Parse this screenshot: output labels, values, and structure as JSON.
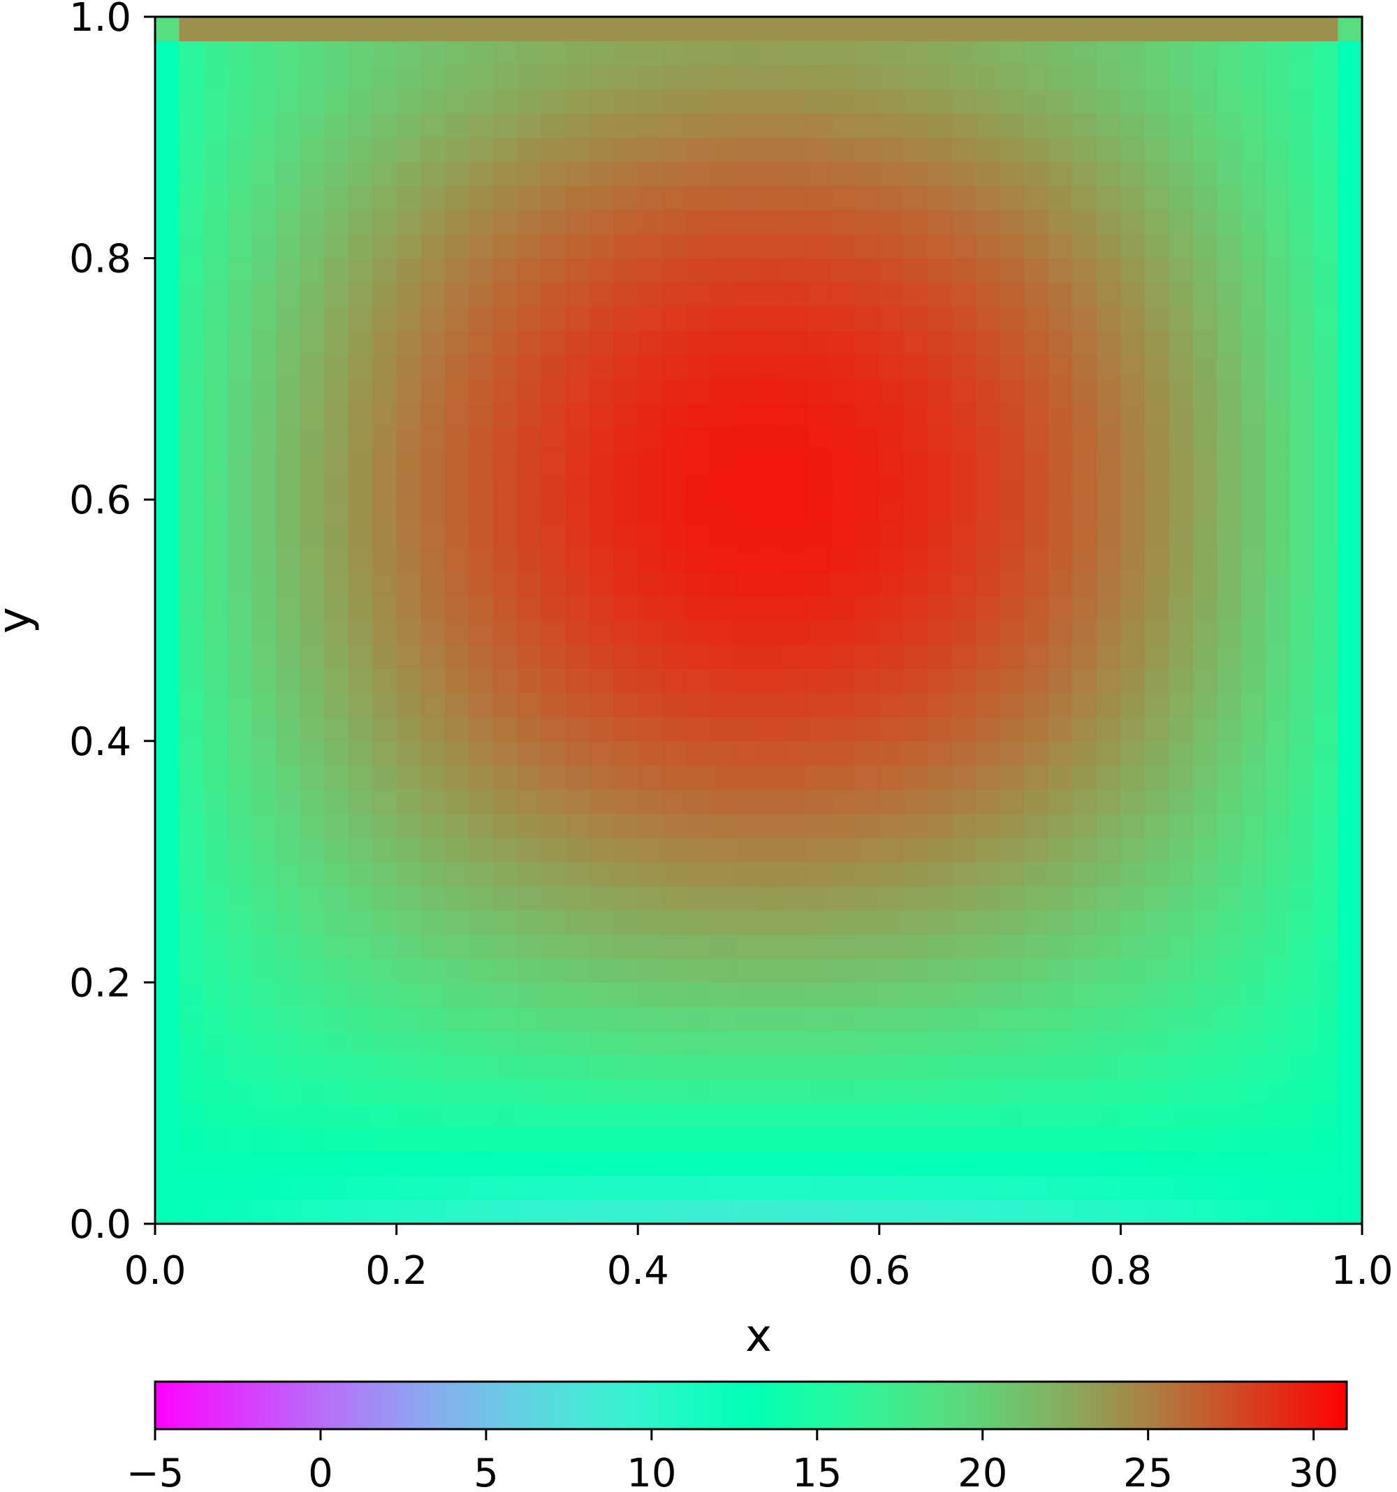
{
  "chart_data": {
    "type": "heatmap",
    "title": "",
    "xlabel": "x",
    "ylabel": "y",
    "xlim": [
      0.0,
      1.0
    ],
    "ylim": [
      0.0,
      1.0
    ],
    "x_ticks": [
      "0.0",
      "0.2",
      "0.4",
      "0.6",
      "0.8",
      "1.0"
    ],
    "y_ticks": [
      "0.0",
      "0.2",
      "0.4",
      "0.6",
      "0.8",
      "1.0"
    ],
    "grid": {
      "nx": 50,
      "ny": 50
    },
    "field": {
      "description_values": "temperature-like field, boundary ~13, top lid ~24, peak ~30 near (0.55, 0.6)",
      "boundary_value": 13,
      "top_lid_value": 24,
      "bottom_edge_value": 8,
      "peak_value": 30,
      "peak_location": [
        0.55,
        0.6
      ]
    },
    "colorbar": {
      "orientation": "horizontal",
      "placement": "bottom",
      "colormap": "rainbow",
      "range": [
        -5,
        31
      ],
      "ticks": [
        "−5",
        "0",
        "5",
        "10",
        "15",
        "20",
        "25",
        "30"
      ],
      "tick_values": [
        -5,
        0,
        5,
        10,
        15,
        20,
        25,
        30
      ]
    },
    "grid_lines": false
  }
}
